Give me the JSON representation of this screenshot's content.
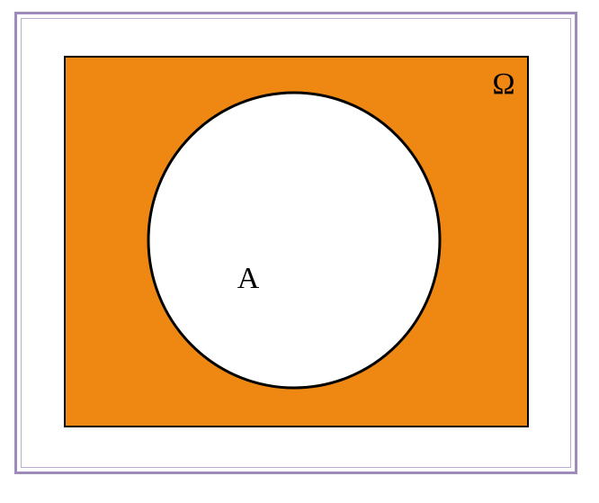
{
  "diagram": {
    "universe_label": "Ω",
    "set_label": "A",
    "colors": {
      "frame_border": "#9d8bbd",
      "universe_fill": "#ee8813",
      "set_fill": "#ffffff",
      "stroke": "#000000"
    }
  }
}
